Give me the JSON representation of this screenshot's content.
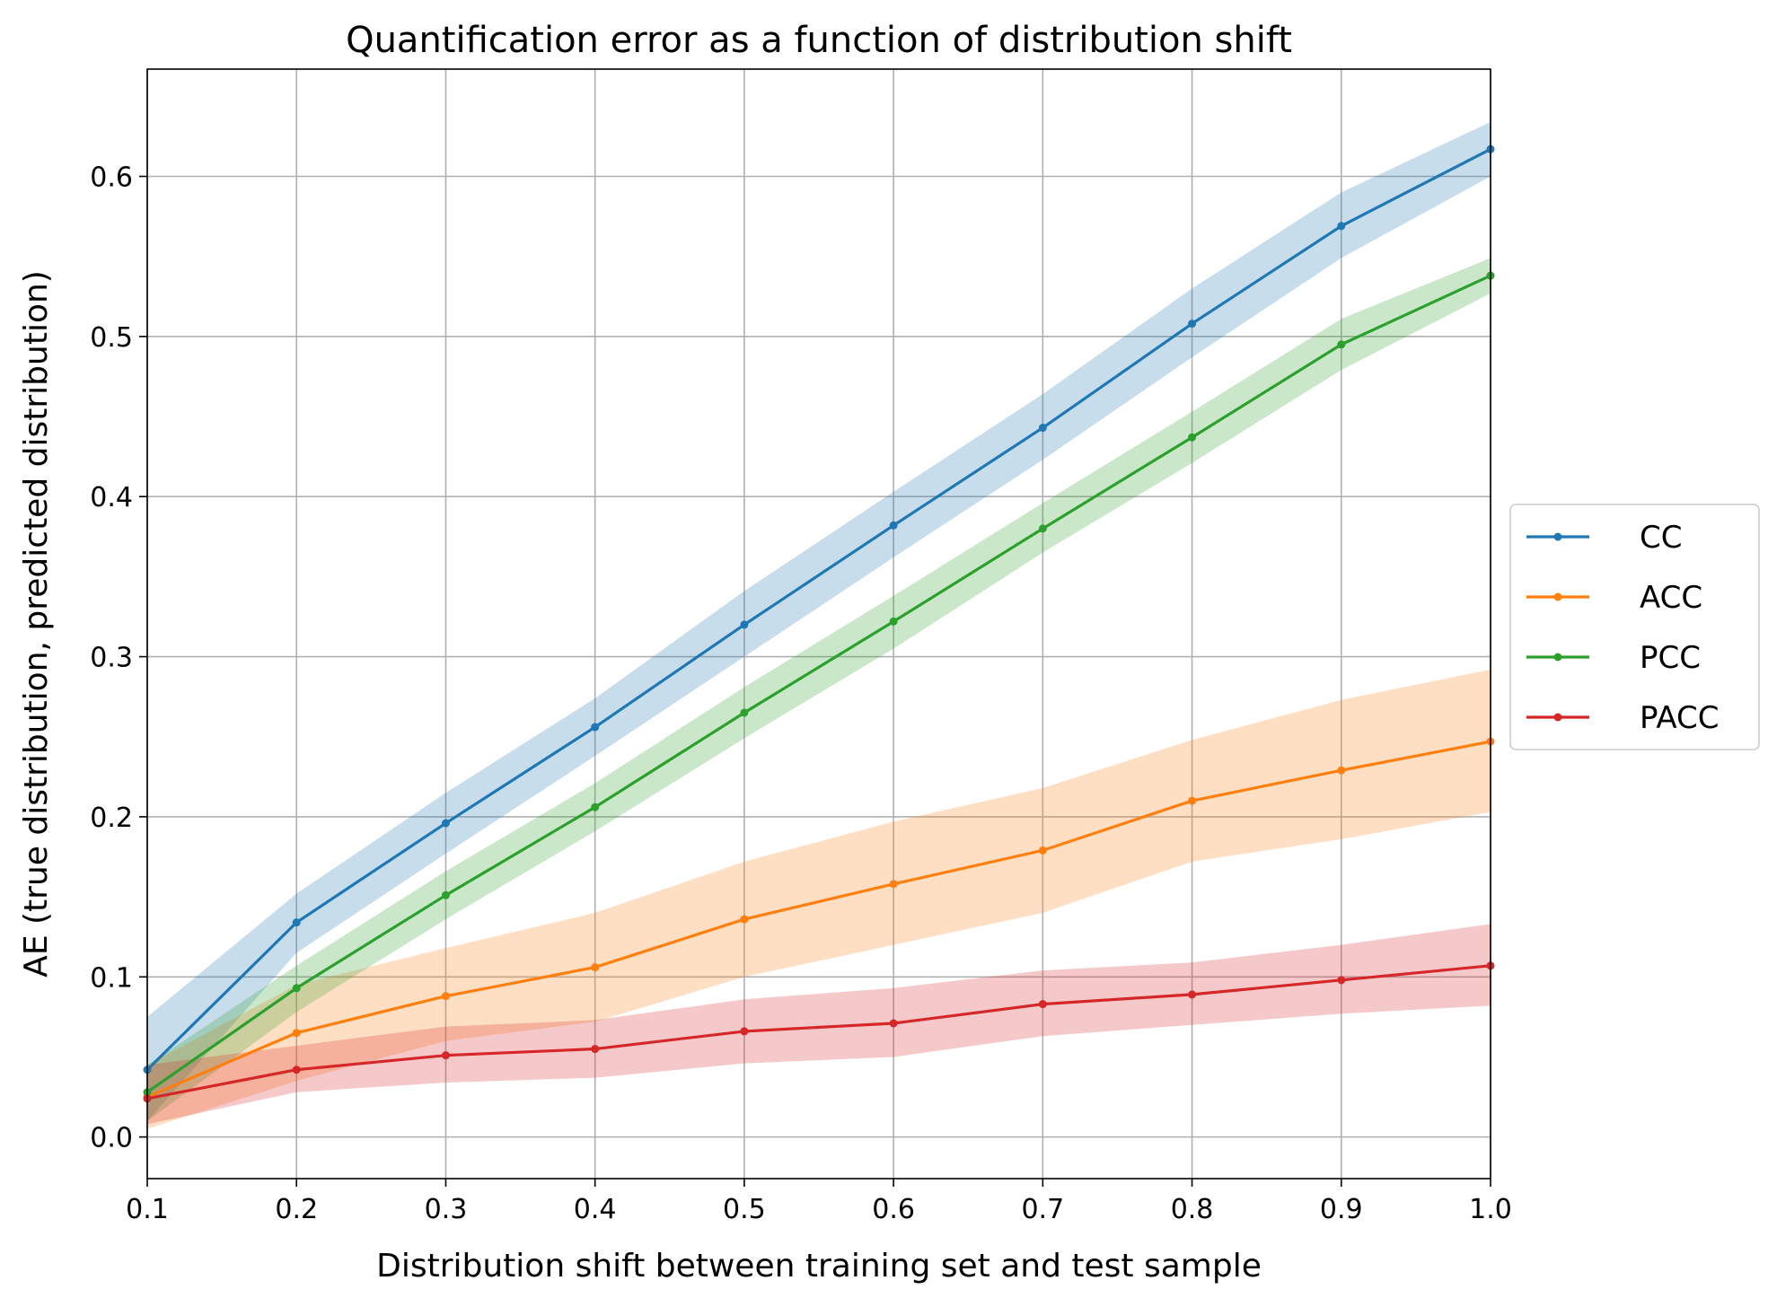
{
  "chart_data": {
    "type": "line",
    "title": "Quantification error as a function of distribution shift",
    "xlabel": "Distribution shift between training set and test sample",
    "ylabel": "AE (true distribution, predicted distribution)",
    "xlim": [
      0.1,
      1.0
    ],
    "ylim": [
      -0.026,
      0.667
    ],
    "grid": true,
    "legend_placement": "outside-right",
    "x": [
      0.1,
      0.2,
      0.3,
      0.4,
      0.5,
      0.6,
      0.7,
      0.8,
      0.9,
      1.0
    ],
    "xticks": [
      "0.1",
      "0.2",
      "0.3",
      "0.4",
      "0.5",
      "0.6",
      "0.7",
      "0.8",
      "0.9",
      "1.0"
    ],
    "yticks": [
      0.0,
      0.1,
      0.2,
      0.3,
      0.4,
      0.5,
      0.6
    ],
    "ytick_labels": [
      "0.0",
      "0.1",
      "0.2",
      "0.3",
      "0.4",
      "0.5",
      "0.6"
    ],
    "series": [
      {
        "name": "CC",
        "color": "#1f77b4",
        "values": [
          0.042,
          0.134,
          0.196,
          0.256,
          0.32,
          0.382,
          0.443,
          0.508,
          0.569,
          0.617
        ],
        "lower": [
          0.01,
          0.115,
          0.177,
          0.238,
          0.3,
          0.362,
          0.423,
          0.487,
          0.549,
          0.6
        ],
        "upper": [
          0.075,
          0.152,
          0.215,
          0.274,
          0.341,
          0.403,
          0.464,
          0.53,
          0.59,
          0.634
        ]
      },
      {
        "name": "ACC",
        "color": "#ff7f0e",
        "values": [
          0.025,
          0.065,
          0.088,
          0.106,
          0.136,
          0.158,
          0.179,
          0.21,
          0.229,
          0.247
        ],
        "lower": [
          0.005,
          0.035,
          0.06,
          0.072,
          0.1,
          0.12,
          0.14,
          0.172,
          0.186,
          0.203
        ],
        "upper": [
          0.045,
          0.095,
          0.118,
          0.14,
          0.172,
          0.197,
          0.218,
          0.248,
          0.273,
          0.292
        ]
      },
      {
        "name": "PCC",
        "color": "#2ca02c",
        "values": [
          0.028,
          0.093,
          0.151,
          0.206,
          0.265,
          0.322,
          0.38,
          0.437,
          0.495,
          0.538
        ],
        "lower": [
          0.01,
          0.078,
          0.136,
          0.191,
          0.249,
          0.305,
          0.365,
          0.421,
          0.479,
          0.527
        ],
        "upper": [
          0.045,
          0.107,
          0.166,
          0.221,
          0.281,
          0.338,
          0.396,
          0.453,
          0.511,
          0.549
        ]
      },
      {
        "name": "PACC",
        "color": "#d62728",
        "values": [
          0.024,
          0.042,
          0.051,
          0.055,
          0.066,
          0.071,
          0.083,
          0.089,
          0.098,
          0.107
        ],
        "lower": [
          0.008,
          0.028,
          0.034,
          0.037,
          0.046,
          0.05,
          0.063,
          0.07,
          0.077,
          0.082
        ],
        "upper": [
          0.045,
          0.057,
          0.069,
          0.073,
          0.086,
          0.093,
          0.104,
          0.109,
          0.12,
          0.133
        ]
      }
    ]
  }
}
